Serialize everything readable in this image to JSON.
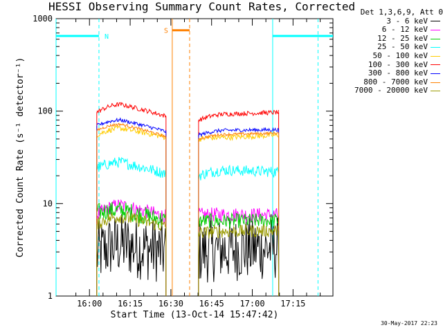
{
  "title": "HESSI Observing Summary Count Rates, Corrected",
  "timestamp": "30-May-2017 22:23",
  "chart_data": {
    "type": "line",
    "title": "HESSI Observing Summary Count Rates, Corrected",
    "xlabel": "Start Time (13-Oct-14 15:47:42)",
    "ylabel": "Corrected Count Rate (s⁻¹ detector⁻¹)",
    "y_scale": "log",
    "ylim": [
      1,
      1000
    ],
    "xlim_minutes_after_start": [
      0,
      102
    ],
    "x_tick_labels": [
      "16:00",
      "16:15",
      "16:30",
      "16:45",
      "17:00",
      "17:15"
    ],
    "x_tick_minutes": [
      12.3,
      27.3,
      42.3,
      57.3,
      72.3,
      87.3
    ],
    "y_tick_labels": [
      "1",
      "10",
      "100",
      "1000"
    ],
    "y_tick_values": [
      1,
      10,
      100,
      1000
    ],
    "legend_title": "Det 1,3,6,9, Att 0",
    "legend_location": "outside-right",
    "series": [
      {
        "name": "3 - 6 keV",
        "color": "#000000",
        "segments": [
          {
            "x0": 15,
            "x1": 40.5,
            "start": 2.8,
            "peak": 3.6,
            "end": 3.0,
            "noise": 0.35
          },
          {
            "x0": 52.5,
            "x1": 82,
            "start": 3.0,
            "peak": 3.2,
            "end": 3.3,
            "noise": 0.35
          }
        ]
      },
      {
        "name": "6 - 12 keV",
        "color": "#ff00ff",
        "segments": [
          {
            "x0": 15,
            "x1": 40.5,
            "start": 7.5,
            "peak": 9.5,
            "end": 7.2,
            "noise": 0.08
          },
          {
            "x0": 52.5,
            "x1": 82,
            "start": 7.5,
            "peak": 7.6,
            "end": 7.5,
            "noise": 0.08
          }
        ]
      },
      {
        "name": "12 - 25 keV",
        "color": "#00cc00",
        "segments": [
          {
            "x0": 15,
            "x1": 40.5,
            "start": 8.0,
            "peak": 8.5,
            "end": 6.5,
            "noise": 0.1
          },
          {
            "x0": 52.5,
            "x1": 82,
            "start": 6.5,
            "peak": 6.5,
            "end": 6.6,
            "noise": 0.08
          }
        ]
      },
      {
        "name": "25 - 50 keV",
        "color": "#00ffff",
        "segments": [
          {
            "x0": 15,
            "x1": 40.5,
            "start": 24,
            "peak": 28,
            "end": 21,
            "noise": 0.06
          },
          {
            "x0": 52.5,
            "x1": 82,
            "start": 20,
            "peak": 23,
            "end": 22,
            "noise": 0.06
          }
        ]
      },
      {
        "name": "50 - 100 keV",
        "color": "#ffcc00",
        "segments": [
          {
            "x0": 15,
            "x1": 40.5,
            "start": 55,
            "peak": 65,
            "end": 52,
            "noise": 0.03
          },
          {
            "x0": 52.5,
            "x1": 82,
            "start": 50,
            "peak": 52,
            "end": 55,
            "noise": 0.03
          }
        ]
      },
      {
        "name": "100 - 300 keV",
        "color": "#ff0000",
        "segments": [
          {
            "x0": 15,
            "x1": 40.5,
            "start": 97,
            "peak": 118,
            "end": 88,
            "noise": 0.025
          },
          {
            "x0": 52.5,
            "x1": 82,
            "start": 80,
            "peak": 93,
            "end": 97,
            "noise": 0.025
          }
        ]
      },
      {
        "name": "300 - 800 keV",
        "color": "#0000ff",
        "segments": [
          {
            "x0": 15,
            "x1": 40.5,
            "start": 70,
            "peak": 80,
            "end": 60,
            "noise": 0.02
          },
          {
            "x0": 52.5,
            "x1": 82,
            "start": 55,
            "peak": 62,
            "end": 63,
            "noise": 0.02
          }
        ]
      },
      {
        "name": "800 - 7000 keV",
        "color": "#ff8000",
        "segments": [
          {
            "x0": 15,
            "x1": 40.5,
            "start": 62,
            "peak": 72,
            "end": 53,
            "noise": 0.015
          },
          {
            "x0": 52.5,
            "x1": 82,
            "start": 50,
            "peak": 56,
            "end": 58,
            "noise": 0.015
          }
        ]
      },
      {
        "name": "7000 - 20000 keV",
        "color": "#999900",
        "segments": [
          {
            "x0": 15,
            "x1": 40.5,
            "start": 6.0,
            "peak": 7.2,
            "end": 5.6,
            "noise": 0.07
          },
          {
            "x0": 52.5,
            "x1": 82,
            "start": 4.8,
            "peak": 5.0,
            "end": 5.1,
            "noise": 0.07
          }
        ]
      }
    ],
    "flags": [
      {
        "label": "N",
        "color": "#00ffff",
        "kind": "night",
        "x0": 0,
        "x1": 15.8,
        "level": 650,
        "dashed_end": 15.8
      },
      {
        "label": "",
        "color": "#00ffff",
        "kind": "night",
        "x0": 79.8,
        "x1": 102,
        "level": 650,
        "dashed_end": 96.5
      },
      {
        "label": "S",
        "color": "#ff8000",
        "kind": "saa",
        "x0": 42.8,
        "x1": 49.2,
        "level": 750,
        "dashed_end": 49.2
      }
    ]
  }
}
